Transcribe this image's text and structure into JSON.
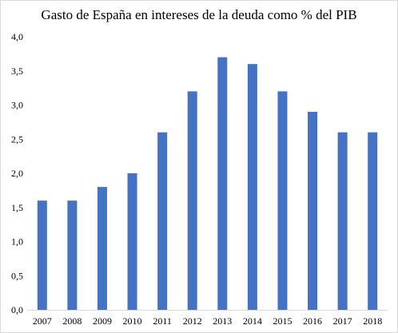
{
  "chart_data": {
    "type": "bar",
    "title": "Gasto de España  en intereses  de la deuda como % del PIB",
    "categories": [
      "2007",
      "2008",
      "2009",
      "2010",
      "2011",
      "2012",
      "2013",
      "2014",
      "2015",
      "2016",
      "2017",
      "2018"
    ],
    "values": [
      1.6,
      1.6,
      1.8,
      2.0,
      2.6,
      3.2,
      3.7,
      3.6,
      3.2,
      2.9,
      2.6,
      2.6
    ],
    "xlabel": "",
    "ylabel": "",
    "ylim": [
      0,
      4.0
    ],
    "yticks": [
      "0,0",
      "0,5",
      "1,0",
      "1,5",
      "2,0",
      "2,5",
      "3,0",
      "3,5",
      "4,0"
    ],
    "grid": false,
    "legend": "none",
    "bar_color": "#4472c4"
  }
}
